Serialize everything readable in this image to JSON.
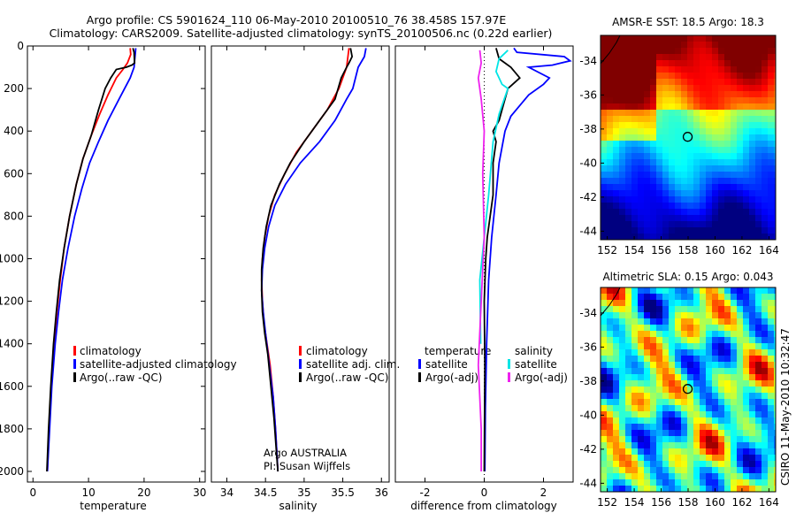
{
  "title_line1": "Argo profile: CS 5901624_110 06-May-2010 20100510_76 38.458S 157.97E",
  "title_line2": "Climatology: CARS2009. Satellite-adjusted climatology: synTS_20100506.nc (0.22d earlier)",
  "side_label": "CSIRO 11-May-2010 10:32:47",
  "float_label_1": "Argo AUSTRALIA",
  "float_label_2": "PI: Susan Wijffels",
  "chart_data": [
    {
      "id": "temperature",
      "type": "line",
      "xlabel": "temperature",
      "xlim": [
        -1,
        31
      ],
      "ylim": [
        0,
        2050
      ],
      "y_reversed": true,
      "xticks": [
        0,
        10,
        20,
        30
      ],
      "yticks": [
        0,
        200,
        400,
        600,
        800,
        1000,
        1200,
        1400,
        1600,
        1800,
        2000
      ],
      "legend": [
        "climatology",
        "satellite-adjusted climatology",
        "Argo(..raw -QC)"
      ],
      "series": [
        {
          "name": "climatology",
          "color": "#ff0000",
          "points": [
            [
              17.5,
              10
            ],
            [
              17.6,
              40
            ],
            [
              17.0,
              80
            ],
            [
              16.2,
              110
            ],
            [
              15.0,
              150
            ],
            [
              13.5,
              230
            ],
            [
              12.0,
              320
            ],
            [
              10.5,
              420
            ],
            [
              9.0,
              530
            ],
            [
              7.8,
              650
            ],
            [
              6.6,
              800
            ],
            [
              5.6,
              950
            ],
            [
              4.9,
              1100
            ],
            [
              4.3,
              1250
            ],
            [
              3.8,
              1400
            ],
            [
              3.3,
              1600
            ],
            [
              2.9,
              1800
            ],
            [
              2.6,
              2000
            ]
          ]
        },
        {
          "name": "satellite-adjusted climatology",
          "color": "#0000ff",
          "points": [
            [
              18.5,
              10
            ],
            [
              18.4,
              40
            ],
            [
              18.3,
              70
            ],
            [
              18.2,
              100
            ],
            [
              17.5,
              150
            ],
            [
              15.5,
              250
            ],
            [
              13.5,
              350
            ],
            [
              11.8,
              450
            ],
            [
              10.2,
              550
            ],
            [
              8.8,
              670
            ],
            [
              7.5,
              800
            ],
            [
              6.3,
              950
            ],
            [
              5.3,
              1100
            ],
            [
              4.6,
              1250
            ],
            [
              4.0,
              1400
            ],
            [
              3.4,
              1600
            ],
            [
              3.0,
              1800
            ],
            [
              2.6,
              2000
            ]
          ]
        },
        {
          "name": "Argo(..raw -QC)",
          "color": "#000000",
          "points": [
            [
              18.0,
              10
            ],
            [
              18.2,
              30
            ],
            [
              18.3,
              80
            ],
            [
              17.8,
              90
            ],
            [
              16.8,
              100
            ],
            [
              15.0,
              110
            ],
            [
              14.0,
              150
            ],
            [
              13.0,
              200
            ],
            [
              11.8,
              300
            ],
            [
              10.5,
              420
            ],
            [
              9.0,
              530
            ],
            [
              7.8,
              650
            ],
            [
              6.6,
              800
            ],
            [
              5.6,
              950
            ],
            [
              4.8,
              1100
            ],
            [
              4.2,
              1250
            ],
            [
              3.7,
              1400
            ],
            [
              3.2,
              1600
            ],
            [
              2.8,
              1800
            ],
            [
              2.5,
              2000
            ]
          ]
        }
      ]
    },
    {
      "id": "salinity",
      "type": "line",
      "xlabel": "salinity",
      "xlim": [
        33.8,
        36.1
      ],
      "ylim": [
        0,
        2050
      ],
      "y_reversed": true,
      "xticks": [
        34,
        34.5,
        35,
        35.5,
        36
      ],
      "xtick_labels": [
        "34",
        "34.5",
        "35",
        "35.5",
        "36"
      ],
      "legend": [
        "climatology",
        "satellite adj. clim.",
        "Argo(..raw -QC)"
      ],
      "series": [
        {
          "name": "climatology",
          "color": "#ff0000",
          "points": [
            [
              35.58,
              10
            ],
            [
              35.55,
              100
            ],
            [
              35.45,
              200
            ],
            [
              35.3,
              300
            ],
            [
              35.1,
              400
            ],
            [
              34.9,
              500
            ],
            [
              34.75,
              600
            ],
            [
              34.62,
              700
            ],
            [
              34.54,
              800
            ],
            [
              34.49,
              900
            ],
            [
              34.46,
              1000
            ],
            [
              34.45,
              1100
            ],
            [
              34.46,
              1200
            ],
            [
              34.48,
              1300
            ],
            [
              34.52,
              1400
            ],
            [
              34.56,
              1500
            ],
            [
              34.6,
              1650
            ],
            [
              34.63,
              1800
            ],
            [
              34.66,
              2000
            ]
          ]
        },
        {
          "name": "satellite adj. clim.",
          "color": "#0000ff",
          "points": [
            [
              35.8,
              10
            ],
            [
              35.78,
              50
            ],
            [
              35.7,
              100
            ],
            [
              35.63,
              200
            ],
            [
              35.55,
              250
            ],
            [
              35.4,
              350
            ],
            [
              35.2,
              450
            ],
            [
              34.95,
              550
            ],
            [
              34.76,
              650
            ],
            [
              34.62,
              750
            ],
            [
              34.54,
              850
            ],
            [
              34.49,
              950
            ],
            [
              34.46,
              1050
            ],
            [
              34.45,
              1150
            ],
            [
              34.47,
              1250
            ],
            [
              34.5,
              1350
            ],
            [
              34.55,
              1500
            ],
            [
              34.6,
              1650
            ],
            [
              34.63,
              1800
            ],
            [
              34.66,
              2000
            ]
          ]
        },
        {
          "name": "Argo(..raw -QC)",
          "color": "#000000",
          "points": [
            [
              35.6,
              10
            ],
            [
              35.62,
              50
            ],
            [
              35.58,
              80
            ],
            [
              35.55,
              100
            ],
            [
              35.48,
              150
            ],
            [
              35.4,
              250
            ],
            [
              35.2,
              350
            ],
            [
              35.0,
              450
            ],
            [
              34.82,
              550
            ],
            [
              34.68,
              650
            ],
            [
              34.57,
              750
            ],
            [
              34.51,
              850
            ],
            [
              34.47,
              950
            ],
            [
              34.45,
              1050
            ],
            [
              34.45,
              1150
            ],
            [
              34.46,
              1250
            ],
            [
              34.49,
              1350
            ],
            [
              34.53,
              1450
            ],
            [
              34.57,
              1600
            ],
            [
              34.61,
              1750
            ],
            [
              34.64,
              1900
            ],
            [
              34.66,
              2000
            ]
          ]
        }
      ]
    },
    {
      "id": "difference",
      "type": "line",
      "xlabel": "difference from climatology",
      "xlim": [
        -3.0,
        3.0
      ],
      "ylim": [
        0,
        2050
      ],
      "y_reversed": true,
      "xticks": [
        -2,
        0,
        2
      ],
      "legend_left_header": "temperature",
      "legend_right_header": "salinity",
      "legend": [
        "satellite",
        "Argo(-adj)",
        "satellite",
        "Argo(-adj)"
      ],
      "series": [
        {
          "name": "satellite",
          "group": "temperature",
          "color": "#0000ff",
          "points": [
            [
              1.0,
              10
            ],
            [
              1.1,
              30
            ],
            [
              2.7,
              50
            ],
            [
              2.9,
              70
            ],
            [
              2.3,
              90
            ],
            [
              1.5,
              100
            ],
            [
              2.2,
              150
            ],
            [
              2.0,
              180
            ],
            [
              1.5,
              230
            ],
            [
              1.2,
              280
            ],
            [
              0.9,
              330
            ],
            [
              0.7,
              400
            ],
            [
              0.5,
              550
            ],
            [
              0.4,
              700
            ],
            [
              0.25,
              900
            ],
            [
              0.15,
              1100
            ],
            [
              0.08,
              1400
            ],
            [
              0.04,
              1700
            ],
            [
              0.02,
              2000
            ]
          ]
        },
        {
          "name": "Argo(-adj)",
          "group": "temperature",
          "color": "#000000",
          "points": [
            [
              0.4,
              10
            ],
            [
              0.5,
              60
            ],
            [
              0.9,
              100
            ],
            [
              1.2,
              150
            ],
            [
              0.8,
              200
            ],
            [
              0.6,
              300
            ],
            [
              0.5,
              350
            ],
            [
              0.3,
              400
            ],
            [
              0.4,
              450
            ],
            [
              0.3,
              550
            ],
            [
              0.3,
              700
            ],
            [
              0.2,
              800
            ],
            [
              0.1,
              900
            ],
            [
              0.05,
              1000
            ],
            [
              0.0,
              1200
            ],
            [
              0.02,
              1500
            ],
            [
              0.0,
              2000
            ]
          ]
        },
        {
          "name": "satellite",
          "group": "salinity",
          "color": "#00e5e5",
          "points": [
            [
              0.8,
              20
            ],
            [
              0.5,
              60
            ],
            [
              0.4,
              120
            ],
            [
              0.6,
              180
            ],
            [
              0.8,
              200
            ],
            [
              0.6,
              280
            ],
            [
              0.5,
              320
            ],
            [
              0.3,
              450
            ],
            [
              0.15,
              700
            ],
            [
              0.0,
              900
            ],
            [
              -0.15,
              1100
            ],
            [
              -0.12,
              1400
            ]
          ]
        },
        {
          "name": "Argo(-adj)",
          "group": "salinity",
          "color": "#ee22ee",
          "points": [
            [
              -0.15,
              20
            ],
            [
              -0.1,
              80
            ],
            [
              -0.2,
              150
            ],
            [
              -0.1,
              250
            ],
            [
              0.0,
              400
            ],
            [
              -0.05,
              600
            ],
            [
              0.0,
              900
            ],
            [
              -0.1,
              1200
            ],
            [
              -0.2,
              1500
            ],
            [
              -0.1,
              1800
            ],
            [
              -0.1,
              2000
            ]
          ]
        }
      ]
    },
    {
      "id": "sst_map",
      "type": "heatmap",
      "title": "AMSR-E SST: 18.5 Argo: 18.3",
      "xlim": [
        151.5,
        164.5
      ],
      "ylim": [
        -44.5,
        -32.5
      ],
      "xticks": [
        152,
        154,
        156,
        158,
        160,
        162,
        164
      ],
      "yticks": [
        -34,
        -36,
        -38,
        -40,
        -42,
        -44
      ],
      "marker": [
        157.97,
        -38.458
      ]
    },
    {
      "id": "sla_map",
      "type": "heatmap",
      "title": "Altimetric SLA: 0.15 Argo: 0.043",
      "xlim": [
        151.5,
        164.5
      ],
      "ylim": [
        -44.5,
        -32.5
      ],
      "xticks": [
        152,
        154,
        156,
        158,
        160,
        162,
        164
      ],
      "yticks": [
        -34,
        -36,
        -38,
        -40,
        -42,
        -44
      ],
      "marker": [
        157.97,
        -38.458
      ]
    }
  ]
}
